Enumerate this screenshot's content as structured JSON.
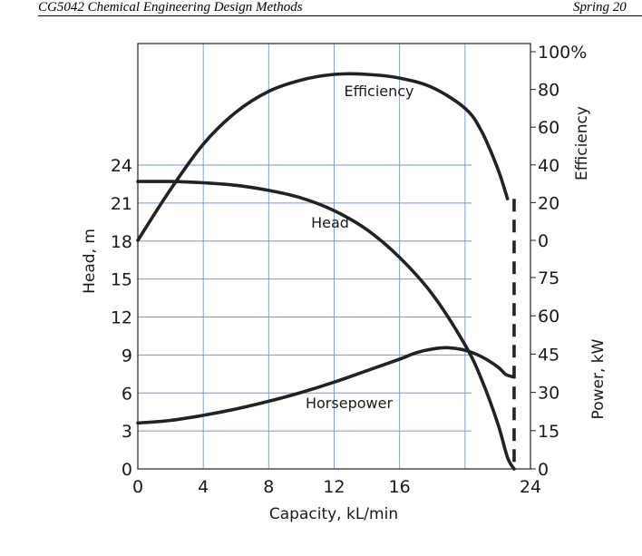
{
  "header": {
    "left": "CG5042 Chemical Engineering Design Methods",
    "right": "Spring 20"
  },
  "chart_data": {
    "type": "line",
    "title": "",
    "xlabel": "Capacity, kL/min",
    "ylabel_left": "Head, m",
    "ylabel_right_top": "Efficiency",
    "ylabel_right_bottom": "Power, kW",
    "xlim": [
      0,
      24
    ],
    "x_ticks": [
      "0",
      "4",
      "8",
      "12",
      "16",
      "24"
    ],
    "head_ticks": [
      "0",
      "3",
      "6",
      "9",
      "12",
      "15",
      "18",
      "21",
      "24"
    ],
    "efficiency_ticks": [
      "0",
      "20",
      "40",
      "60",
      "80",
      "100%"
    ],
    "power_ticks": [
      "0",
      "15",
      "30",
      "45",
      "60",
      "75"
    ],
    "series": [
      {
        "name": "Efficiency",
        "axis": "efficiency",
        "unit": "%",
        "x": [
          0,
          2,
          4,
          6,
          8,
          10,
          12,
          14,
          16,
          18,
          20,
          21,
          22,
          22.6
        ],
        "y": [
          0,
          27,
          51,
          68,
          79,
          85,
          88,
          88,
          86,
          81,
          70,
          58,
          38,
          22
        ]
      },
      {
        "name": "Head",
        "axis": "head",
        "unit": "m",
        "x": [
          0,
          2,
          4,
          6,
          8,
          10,
          12,
          14,
          16,
          18,
          20,
          21,
          22,
          22.6,
          23
        ],
        "y": [
          22.7,
          22.7,
          22.6,
          22.4,
          22.0,
          21.4,
          20.4,
          18.9,
          16.7,
          13.8,
          9.8,
          7.1,
          3.6,
          0.9,
          0
        ]
      },
      {
        "name": "Horsepower",
        "axis": "power",
        "unit": "kW",
        "x": [
          0,
          2,
          4,
          6,
          8,
          10,
          12,
          14,
          16,
          17,
          18,
          19,
          20,
          21,
          22,
          22.5,
          23
        ],
        "y": [
          18,
          19,
          21,
          23.5,
          26.5,
          30,
          34,
          38.5,
          43,
          45.5,
          47,
          47.5,
          46.5,
          44,
          40,
          37,
          36
        ]
      }
    ],
    "vertical_boundary": {
      "x": 23,
      "style": "dashed",
      "efficiency_top_percent": 22,
      "power_bottom_kw": 0
    }
  }
}
